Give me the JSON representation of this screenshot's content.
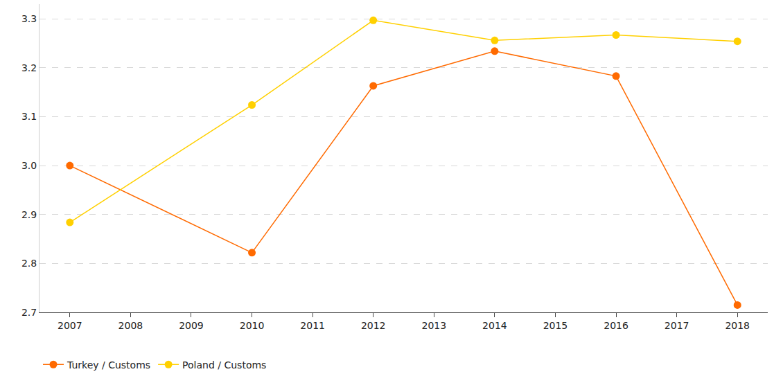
{
  "chart_data": {
    "type": "line",
    "x": [
      2007,
      2010,
      2012,
      2014,
      2016,
      2018
    ],
    "xlim": [
      2006.5,
      2018.5
    ],
    "xticks": [
      2007,
      2008,
      2009,
      2010,
      2011,
      2012,
      2013,
      2014,
      2015,
      2016,
      2017,
      2018
    ],
    "ylim": [
      2.7,
      3.33
    ],
    "yticks": [
      2.7,
      2.8,
      2.9,
      {
        "value": 3,
        "label": "3.0"
      },
      3.1,
      3.2,
      3.3
    ],
    "grid": true,
    "legend": "bottom left",
    "marker": "circle",
    "series": [
      {
        "name": "Turkey / Customs",
        "color": "#ff6a00",
        "values": [
          3.0,
          2.822,
          3.163,
          3.234,
          3.183,
          2.715
        ]
      },
      {
        "name": "Poland / Customs",
        "color": "#ffd000",
        "values": [
          2.884,
          3.124,
          3.297,
          3.256,
          3.267,
          3.254
        ]
      }
    ]
  }
}
